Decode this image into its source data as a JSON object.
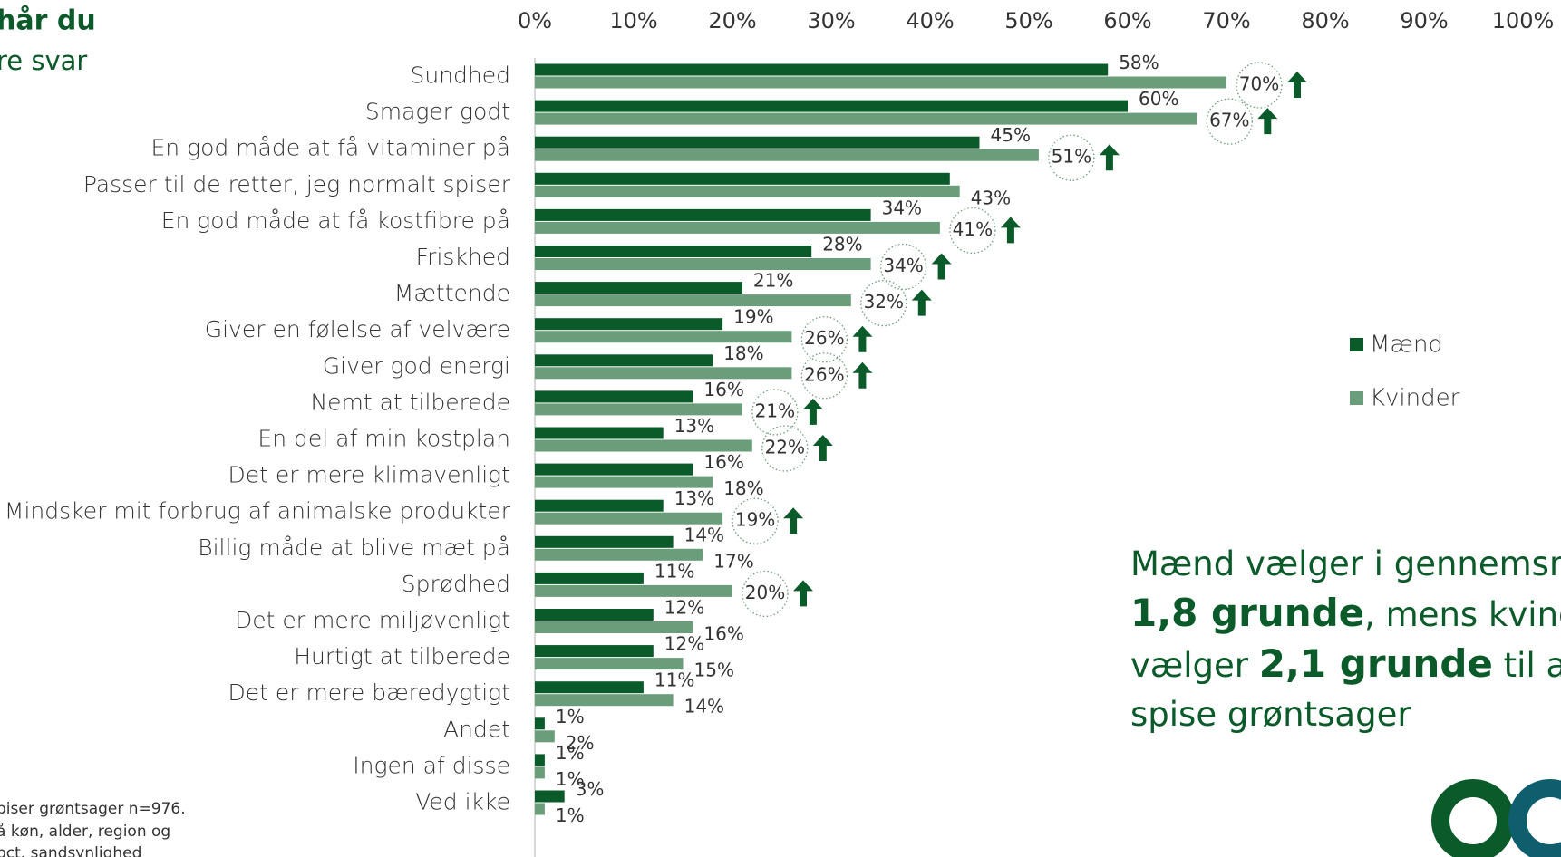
{
  "chart_data": {
    "type": "bar",
    "orientation": "horizontal",
    "title": "hår du",
    "subtitle": "re svar",
    "footnote": [
      "piser grøntsager n=976.",
      "å køn, alder, region og",
      "pct. sandsynlighed"
    ],
    "annotation": [
      "Mænd vælger i gennemsnit",
      "1,8 grunde",
      ", mens kvinder",
      "vælger ",
      "2,1 grunde",
      " til at",
      "spise grøntsager"
    ],
    "categories": [
      "Sundhed",
      "Smager godt",
      "En god måde at få vitaminer på",
      "Passer til de retter, jeg normalt spiser",
      "En god måde at få kostfibre på",
      "Friskhed",
      "Mættende",
      "Giver en følelse af velvære",
      "Giver god energi",
      "Nemt at tilberede",
      "En del af min kostplan",
      "Det er mere klimavenligt",
      "Mindsker mit forbrug af animalske produkter",
      "Billig måde at blive mæt på",
      "Sprødhed",
      "Det er mere miljøvenligt",
      "Hurtigt at tilberede",
      "Det er mere bæredygtigt",
      "Andet",
      "Ingen af disse",
      "Ved ikke"
    ],
    "series": [
      {
        "name": "Mænd",
        "color": "#0b5a2a",
        "values": [
          58,
          60,
          45,
          42,
          34,
          28,
          21,
          19,
          18,
          16,
          13,
          16,
          13,
          14,
          11,
          12,
          12,
          11,
          1,
          1,
          3
        ],
        "value_labels": [
          "58%",
          "60%",
          "45%",
          null,
          "34%",
          "28%",
          "21%",
          "19%",
          "18%",
          "16%",
          "13%",
          "16%",
          "13%",
          "14%",
          "11%",
          "12%",
          "12%",
          "11%",
          "1%",
          "1%",
          "3%"
        ]
      },
      {
        "name": "Kvinder",
        "color": "#6a9e7a",
        "values": [
          70,
          67,
          51,
          43,
          41,
          34,
          32,
          26,
          26,
          21,
          22,
          18,
          19,
          17,
          20,
          16,
          15,
          14,
          2,
          1,
          1
        ],
        "value_labels": [
          "70%",
          "67%",
          "51%",
          "43%",
          "41%",
          "34%",
          "32%",
          "26%",
          "26%",
          "21%",
          "22%",
          "18%",
          "19%",
          "17%",
          "20%",
          "16%",
          "15%",
          "14%",
          "2%",
          "1%",
          "1%"
        ],
        "significant": [
          true,
          true,
          true,
          false,
          true,
          true,
          true,
          true,
          true,
          true,
          true,
          false,
          true,
          false,
          true,
          false,
          false,
          false,
          false,
          false,
          false
        ]
      }
    ],
    "xlim": [
      0,
      100
    ],
    "xticks": [
      {
        "value": 0,
        "label": "0%"
      },
      {
        "value": 10,
        "label": "10%"
      },
      {
        "value": 20,
        "label": "20%"
      },
      {
        "value": 30,
        "label": "30%"
      },
      {
        "value": 40,
        "label": "40%"
      },
      {
        "value": 50,
        "label": "50%"
      },
      {
        "value": 60,
        "label": "60%"
      },
      {
        "value": 70,
        "label": "70%"
      },
      {
        "value": 80,
        "label": "80%"
      },
      {
        "value": 90,
        "label": "90%"
      },
      {
        "value": 100,
        "label": "100%"
      }
    ],
    "grid": false,
    "legend": "right"
  }
}
